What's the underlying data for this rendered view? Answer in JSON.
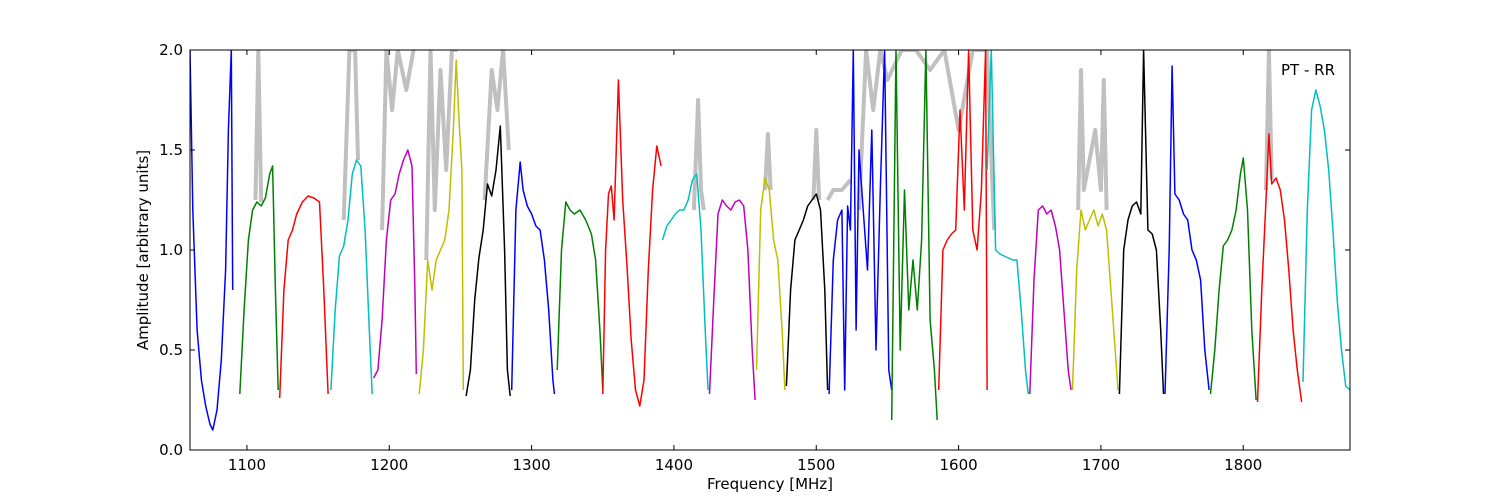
{
  "chart_data": {
    "type": "line",
    "title": "",
    "xlabel": "Frequency [MHz]",
    "ylabel": "Amplitude [arbitrary units]",
    "xlim": [
      1060,
      1875
    ],
    "ylim": [
      0.0,
      2.0
    ],
    "xticks": [
      1100,
      1200,
      1300,
      1400,
      1500,
      1600,
      1700,
      1800
    ],
    "xtick_labels": [
      "1100",
      "1200",
      "1300",
      "1400",
      "1500",
      "1600",
      "1700",
      "1800"
    ],
    "yticks": [
      0.0,
      0.5,
      1.0,
      1.5,
      2.0
    ],
    "ytick_labels": [
      "0.0",
      "0.5",
      "1.0",
      "1.5",
      "2.0"
    ],
    "grid": false,
    "annotation": "PT - RR",
    "background_color": "#c0c0c0",
    "series": [
      {
        "color": "#0000ff",
        "x": [
          1060,
          1062,
          1065,
          1068,
          1071,
          1074,
          1076,
          1079,
          1082,
          1085,
          1087,
          1089,
          1090
        ],
        "y": [
          2.0,
          1.2,
          0.6,
          0.35,
          0.22,
          0.13,
          0.1,
          0.2,
          0.45,
          0.9,
          1.6,
          2.0,
          0.8
        ]
      },
      {
        "color": "#008000",
        "x": [
          1095,
          1098,
          1101,
          1104,
          1107,
          1110,
          1113,
          1116,
          1118,
          1120,
          1122
        ],
        "y": [
          0.28,
          0.7,
          1.05,
          1.2,
          1.24,
          1.22,
          1.26,
          1.38,
          1.42,
          0.8,
          0.3
        ]
      },
      {
        "color": "#ff0000",
        "x": [
          1123,
          1126,
          1129,
          1132,
          1135,
          1139,
          1143,
          1147,
          1151,
          1154,
          1157
        ],
        "y": [
          0.26,
          0.8,
          1.05,
          1.1,
          1.18,
          1.24,
          1.27,
          1.26,
          1.24,
          0.8,
          0.28
        ]
      },
      {
        "color": "#00bfbf",
        "x": [
          1159,
          1162,
          1165,
          1168,
          1171,
          1174,
          1177,
          1180,
          1183,
          1186,
          1188
        ],
        "y": [
          0.3,
          0.7,
          0.97,
          1.02,
          1.15,
          1.38,
          1.45,
          1.42,
          1.1,
          0.6,
          0.28
        ]
      },
      {
        "color": "#bf00bf",
        "x": [
          1189,
          1192,
          1195,
          1198,
          1201,
          1204,
          1207,
          1210,
          1213,
          1216,
          1218,
          1219
        ],
        "y": [
          0.36,
          0.4,
          0.65,
          1.05,
          1.25,
          1.28,
          1.38,
          1.45,
          1.5,
          1.42,
          0.8,
          0.38
        ]
      },
      {
        "color": "#bfbf00",
        "x": [
          1221,
          1224,
          1227,
          1230,
          1233,
          1236,
          1239,
          1242,
          1245,
          1247,
          1249,
          1251,
          1252
        ],
        "y": [
          0.28,
          0.5,
          0.95,
          0.8,
          0.95,
          1.0,
          1.05,
          1.2,
          1.6,
          1.95,
          1.65,
          1.4,
          0.3
        ]
      },
      {
        "color": "#000000",
        "x": [
          1254,
          1257,
          1260,
          1263,
          1266,
          1269,
          1272,
          1275,
          1278,
          1281,
          1283,
          1285
        ],
        "y": [
          0.27,
          0.4,
          0.75,
          0.96,
          1.1,
          1.33,
          1.27,
          1.4,
          1.62,
          1.0,
          0.4,
          0.27
        ]
      },
      {
        "color": "#0000ff",
        "x": [
          1286,
          1289,
          1292,
          1294,
          1297,
          1300,
          1303,
          1306,
          1309,
          1312,
          1315,
          1316
        ],
        "y": [
          0.3,
          1.2,
          1.44,
          1.3,
          1.22,
          1.18,
          1.12,
          1.1,
          0.95,
          0.7,
          0.35,
          0.28
        ]
      },
      {
        "color": "#008000",
        "x": [
          1318,
          1321,
          1324,
          1327,
          1330,
          1334,
          1338,
          1342,
          1345,
          1348,
          1350
        ],
        "y": [
          0.4,
          1.0,
          1.24,
          1.2,
          1.18,
          1.2,
          1.15,
          1.08,
          0.95,
          0.6,
          0.3
        ]
      },
      {
        "color": "#ff0000",
        "x": [
          1350,
          1352,
          1354,
          1356,
          1358,
          1361,
          1364,
          1367,
          1370,
          1373,
          1376,
          1379,
          1382,
          1385,
          1388,
          1391
        ],
        "y": [
          0.28,
          1.0,
          1.28,
          1.32,
          1.15,
          1.85,
          1.25,
          0.92,
          0.55,
          0.3,
          0.22,
          0.35,
          0.9,
          1.3,
          1.52,
          1.42
        ]
      },
      {
        "color": "#00bfbf",
        "x": [
          1392,
          1395,
          1398,
          1401,
          1404,
          1407,
          1410,
          1413,
          1416,
          1419,
          1422,
          1424
        ],
        "y": [
          1.05,
          1.12,
          1.15,
          1.18,
          1.2,
          1.2,
          1.25,
          1.35,
          1.38,
          1.1,
          0.6,
          0.3
        ]
      },
      {
        "color": "#bf00bf",
        "x": [
          1425,
          1428,
          1431,
          1434,
          1437,
          1440,
          1443,
          1446,
          1449,
          1452,
          1455,
          1457
        ],
        "y": [
          0.28,
          0.75,
          1.18,
          1.25,
          1.22,
          1.2,
          1.24,
          1.25,
          1.22,
          1.0,
          0.5,
          0.25
        ]
      },
      {
        "color": "#bfbf00",
        "x": [
          1458,
          1461,
          1464,
          1467,
          1470,
          1473,
          1476,
          1478
        ],
        "y": [
          0.4,
          1.2,
          1.36,
          1.3,
          1.05,
          0.95,
          0.6,
          0.3
        ]
      },
      {
        "color": "#000000",
        "x": [
          1479,
          1482,
          1485,
          1488,
          1491,
          1494,
          1497,
          1500,
          1503,
          1506,
          1508
        ],
        "y": [
          0.32,
          0.8,
          1.05,
          1.1,
          1.15,
          1.22,
          1.25,
          1.28,
          1.2,
          0.8,
          0.3
        ]
      },
      {
        "color": "#0000ff",
        "x": [
          1509,
          1512,
          1515,
          1518,
          1520,
          1522,
          1524,
          1526,
          1528,
          1530,
          1533,
          1536,
          1539,
          1542,
          1545,
          1548,
          1551,
          1553
        ],
        "y": [
          0.28,
          0.95,
          1.15,
          1.2,
          0.3,
          1.22,
          1.1,
          2.0,
          0.6,
          1.5,
          1.2,
          0.9,
          1.6,
          0.5,
          1.3,
          2.0,
          0.4,
          0.3
        ]
      },
      {
        "color": "#008000",
        "x": [
          1553,
          1556,
          1559,
          1562,
          1565,
          1568,
          1571,
          1574,
          1577,
          1580,
          1583,
          1585
        ],
        "y": [
          0.15,
          2.0,
          0.5,
          1.3,
          0.7,
          0.95,
          0.7,
          1.05,
          2.0,
          0.65,
          0.4,
          0.15
        ]
      },
      {
        "color": "#ff0000",
        "x": [
          1586,
          1589,
          1592,
          1595,
          1598,
          1601,
          1604,
          1607,
          1610,
          1613,
          1616,
          1619,
          1620
        ],
        "y": [
          0.3,
          1.0,
          1.05,
          1.08,
          1.1,
          1.7,
          1.2,
          2.0,
          1.1,
          1.0,
          1.3,
          2.0,
          0.3
        ]
      },
      {
        "color": "#00bfbf",
        "x": [
          1620,
          1623,
          1626,
          1629,
          1632,
          1635,
          1638,
          1641,
          1644,
          1647,
          1649
        ],
        "y": [
          1.4,
          2.0,
          1.0,
          0.98,
          0.97,
          0.96,
          0.95,
          0.95,
          0.7,
          0.4,
          0.28
        ]
      },
      {
        "color": "#bf00bf",
        "x": [
          1650,
          1653,
          1656,
          1659,
          1662,
          1665,
          1668,
          1671,
          1674,
          1677,
          1679
        ],
        "y": [
          0.28,
          0.85,
          1.2,
          1.22,
          1.18,
          1.2,
          1.12,
          1.0,
          0.7,
          0.4,
          0.3
        ]
      },
      {
        "color": "#bfbf00",
        "x": [
          1680,
          1683,
          1686,
          1689,
          1692,
          1695,
          1698,
          1701,
          1704,
          1707,
          1710,
          1712
        ],
        "y": [
          0.3,
          0.9,
          1.2,
          1.1,
          1.15,
          1.2,
          1.12,
          1.18,
          1.1,
          0.8,
          0.5,
          0.3
        ]
      },
      {
        "color": "#000000",
        "x": [
          1713,
          1716,
          1719,
          1722,
          1725,
          1728,
          1730,
          1733,
          1736,
          1739,
          1742,
          1744
        ],
        "y": [
          0.28,
          1.0,
          1.15,
          1.22,
          1.24,
          1.18,
          2.0,
          1.1,
          1.08,
          1.0,
          0.6,
          0.28
        ]
      },
      {
        "color": "#0000ff",
        "x": [
          1745,
          1748,
          1750,
          1752,
          1755,
          1758,
          1761,
          1764,
          1767,
          1770,
          1773,
          1776
        ],
        "y": [
          0.28,
          1.0,
          1.92,
          1.28,
          1.25,
          1.18,
          1.15,
          1.0,
          0.95,
          0.85,
          0.5,
          0.3
        ]
      },
      {
        "color": "#008000",
        "x": [
          1777,
          1780,
          1783,
          1786,
          1789,
          1792,
          1795,
          1798,
          1800,
          1803,
          1806,
          1809
        ],
        "y": [
          0.28,
          0.5,
          0.8,
          1.02,
          1.05,
          1.1,
          1.2,
          1.38,
          1.46,
          1.2,
          0.6,
          0.25
        ]
      },
      {
        "color": "#ff0000",
        "x": [
          1810,
          1813,
          1816,
          1818,
          1820,
          1823,
          1826,
          1829,
          1832,
          1835,
          1838,
          1841
        ],
        "y": [
          0.24,
          0.8,
          1.25,
          1.58,
          1.33,
          1.36,
          1.3,
          1.15,
          0.9,
          0.6,
          0.4,
          0.24
        ]
      },
      {
        "color": "#00bfbf",
        "x": [
          1842,
          1845,
          1848,
          1851,
          1854,
          1857,
          1860,
          1863,
          1866,
          1869,
          1872,
          1875
        ],
        "y": [
          0.34,
          1.2,
          1.7,
          1.8,
          1.72,
          1.6,
          1.4,
          1.1,
          0.75,
          0.5,
          0.32,
          0.3
        ]
      }
    ],
    "background_spikes": [
      {
        "x": [
          1106,
          1108,
          1110
        ],
        "y": [
          1.25,
          2.0,
          1.24
        ]
      },
      {
        "x": [
          1168,
          1172,
          1176,
          1178
        ],
        "y": [
          1.15,
          2.0,
          2.0,
          1.45
        ]
      },
      {
        "x": [
          1195,
          1198,
          1202,
          1206,
          1212,
          1217
        ],
        "y": [
          1.1,
          2.0,
          1.7,
          2.0,
          1.8,
          2.0
        ]
      },
      {
        "x": [
          1226,
          1229,
          1232,
          1236,
          1240,
          1244,
          1248
        ],
        "y": [
          0.95,
          2.0,
          1.2,
          1.9,
          1.4,
          2.0,
          2.0
        ]
      },
      {
        "x": [
          1267,
          1272,
          1276,
          1280,
          1284
        ],
        "y": [
          1.25,
          1.9,
          1.7,
          2.0,
          1.5
        ]
      },
      {
        "x": [
          1414,
          1417,
          1419,
          1421
        ],
        "y": [
          1.2,
          1.75,
          1.3,
          1.2
        ]
      },
      {
        "x": [
          1464,
          1466,
          1468
        ],
        "y": [
          1.3,
          1.58,
          1.3
        ]
      },
      {
        "x": [
          1498,
          1500,
          1502
        ],
        "y": [
          1.25,
          1.6,
          1.25
        ]
      },
      {
        "x": [
          1508,
          1512,
          1518,
          1524
        ],
        "y": [
          1.25,
          1.3,
          1.3,
          1.35
        ]
      },
      {
        "x": [
          1530,
          1535,
          1540,
          1545,
          1550,
          1560,
          1570,
          1580,
          1590,
          1600,
          1610,
          1620,
          1625
        ],
        "y": [
          1.2,
          2.0,
          1.7,
          2.0,
          1.85,
          2.0,
          2.0,
          1.9,
          2.0,
          1.6,
          2.0,
          2.0,
          1.1
        ]
      },
      {
        "x": [
          1684,
          1686,
          1688,
          1696,
          1700,
          1702,
          1704
        ],
        "y": [
          1.2,
          1.9,
          1.3,
          1.6,
          1.3,
          1.85,
          1.2
        ]
      },
      {
        "x": [
          1816,
          1818,
          1820
        ],
        "y": [
          1.3,
          2.0,
          1.35
        ]
      }
    ]
  }
}
